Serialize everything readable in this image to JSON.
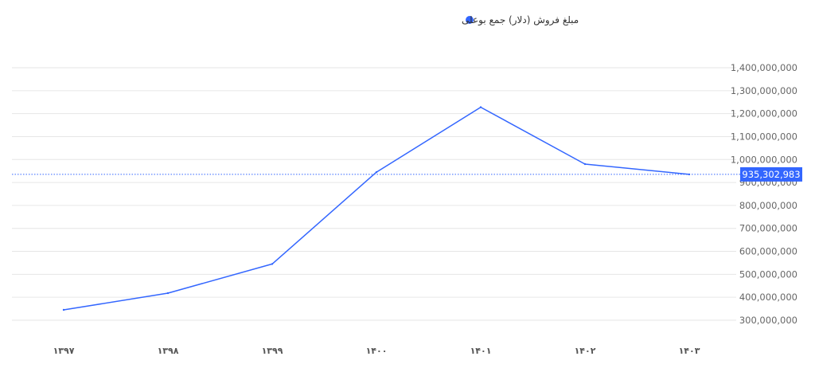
{
  "chart_data": {
    "type": "line",
    "categories": [
      "۱۳۹۷",
      "۱۳۹۸",
      "۱۳۹۹",
      "۱۴۰۰",
      "۱۴۰۱",
      "۱۴۰۲",
      "۱۴۰۳"
    ],
    "series": [
      {
        "name": "مبلغ فروش (دلار) جمع بوعلی",
        "values": [
          345000000,
          418000000,
          545000000,
          945000000,
          1228000000,
          980000000,
          935302983
        ]
      }
    ],
    "y_ticks": [
      "1,400,000,000",
      "1,300,000,000",
      "1,200,000,000",
      "1,100,000,000",
      "1,000,000,000",
      "900,000,000",
      "800,000,000",
      "700,000,000",
      "600,000,000",
      "500,000,000",
      "400,000,000",
      "300,000,000"
    ],
    "ylim": [
      250000000,
      1400000000
    ],
    "y_axis_side": "right",
    "grid": true,
    "legend_position": "top-center",
    "crosshair": {
      "value": 935302983,
      "label": "935,302,983"
    },
    "colors": {
      "series": "#3366ff",
      "grid": "#e6e6e6",
      "cursor_label_bg": "#3366ff"
    },
    "title": "",
    "xlabel": "",
    "ylabel": ""
  }
}
